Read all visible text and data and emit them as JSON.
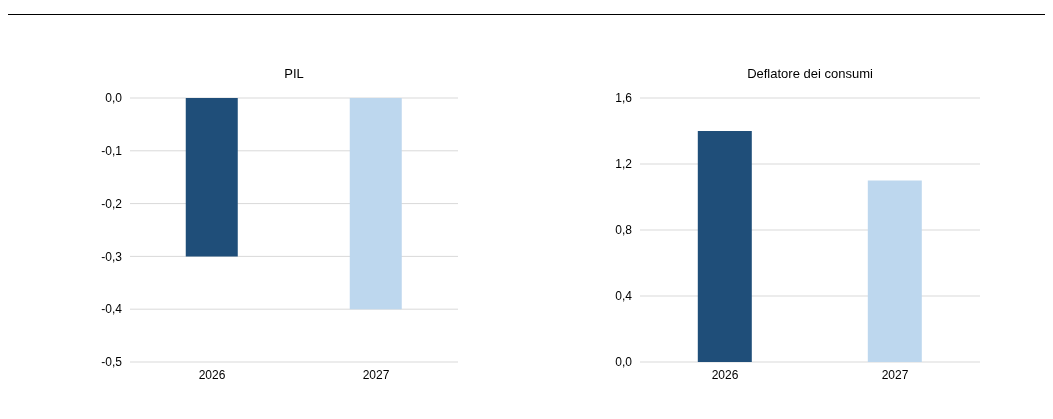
{
  "chart_data": [
    {
      "type": "bar",
      "title": "PIL",
      "categories": [
        "2026",
        "2027"
      ],
      "values": [
        -0.3,
        -0.4
      ],
      "colors": [
        "#1f4e79",
        "#bdd7ee"
      ],
      "ylim": [
        -0.5,
        0
      ],
      "yticks": [
        {
          "value": -0.5,
          "label": "-0,5"
        },
        {
          "value": -0.4,
          "label": "-0,4"
        },
        {
          "value": -0.3,
          "label": "-0,3"
        },
        {
          "value": -0.2,
          "label": "-0,2"
        },
        {
          "value": -0.1,
          "label": "-0,1"
        },
        {
          "value": 0,
          "label": "0,0"
        }
      ],
      "grid": "y"
    },
    {
      "type": "bar",
      "title": "Deflatore dei consumi",
      "categories": [
        "2026",
        "2027"
      ],
      "values": [
        1.4,
        1.1
      ],
      "colors": [
        "#1f4e79",
        "#bdd7ee"
      ],
      "ylim": [
        0,
        1.6
      ],
      "yticks": [
        {
          "value": 0,
          "label": "0,0"
        },
        {
          "value": 0.4,
          "label": "0,4"
        },
        {
          "value": 0.8,
          "label": "0,8"
        },
        {
          "value": 1.2,
          "label": "1,2"
        },
        {
          "value": 1.6,
          "label": "1,6"
        }
      ],
      "grid": "y"
    }
  ]
}
